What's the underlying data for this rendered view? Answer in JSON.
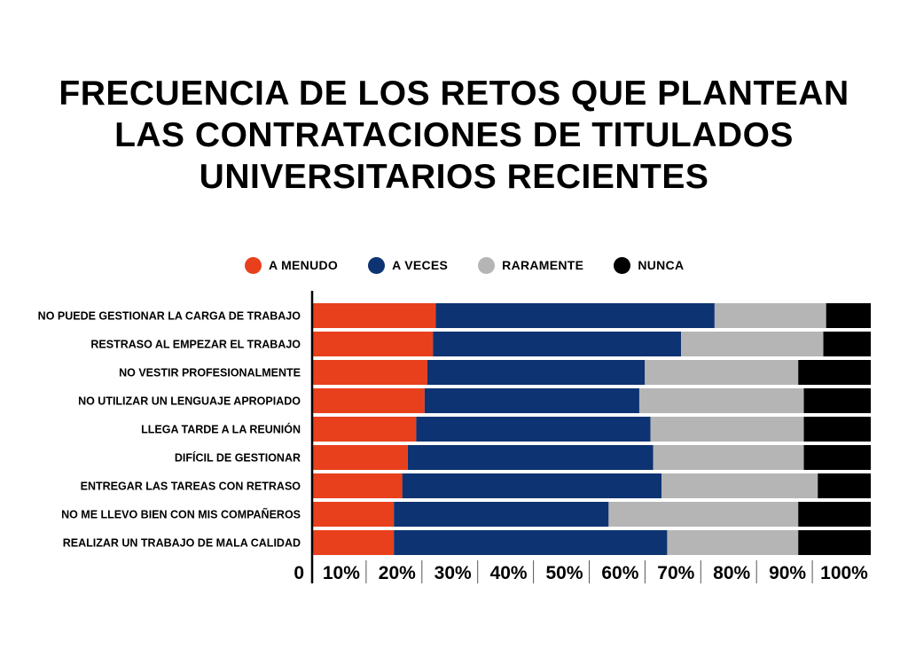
{
  "colors": {
    "a_menudo": "#e8401c",
    "a_veces": "#0d3372",
    "raramente": "#b5b5b5",
    "nunca": "#000000"
  },
  "chart_data": {
    "type": "bar",
    "orientation": "horizontal",
    "stacked": true,
    "title": [
      "FRECUENCIA DE LOS RETOS QUE PLANTEAN",
      "LAS CONTRATACIONES DE TITULADOS",
      "UNIVERSITARIOS RECIENTES"
    ],
    "legend": {
      "placement": "top",
      "entries": [
        "A MENUDO",
        "A VECES",
        "RARAMENTE",
        "NUNCA"
      ]
    },
    "categories": [
      "NO PUEDE GESTIONAR LA CARGA DE TRABAJO",
      "RESTRASO AL EMPEZAR EL TRABAJO",
      "NO VESTIR PROFESIONALMENTE",
      "NO UTILIZAR UN LENGUAJE APROPIADO",
      "LLEGA TARDE A LA REUNIÓN",
      "DIFÍCIL DE GESTIONAR",
      "ENTREGAR LAS TAREAS CON RETRASO",
      "NO ME LLEVO BIEN CON MIS COMPAÑEROS",
      "REALIZAR UN TRABAJO DE MALA CALIDAD"
    ],
    "series": [
      {
        "name": "A MENUDO",
        "color_key": "a_menudo",
        "values": [
          22,
          21.5,
          20.5,
          20,
          18.5,
          17,
          16,
          14.5,
          14.5
        ]
      },
      {
        "name": "A VECES",
        "color_key": "a_veces",
        "values": [
          50,
          44.5,
          39,
          38.5,
          42,
          44,
          46.5,
          38.5,
          49
        ]
      },
      {
        "name": "RARAMENTE",
        "color_key": "raramente",
        "values": [
          20,
          25.5,
          27.5,
          29.5,
          27.5,
          27,
          28,
          34,
          23.5
        ]
      },
      {
        "name": "NUNCA",
        "color_key": "nunca",
        "values": [
          8,
          8.5,
          13,
          12,
          12,
          12,
          9.5,
          13,
          13
        ]
      }
    ],
    "x_ticks": [
      "0",
      "10%",
      "20%",
      "30%",
      "40%",
      "50%",
      "60%",
      "70%",
      "80%",
      "90%",
      "100%"
    ],
    "xlim": [
      0,
      100
    ],
    "grid": true
  }
}
